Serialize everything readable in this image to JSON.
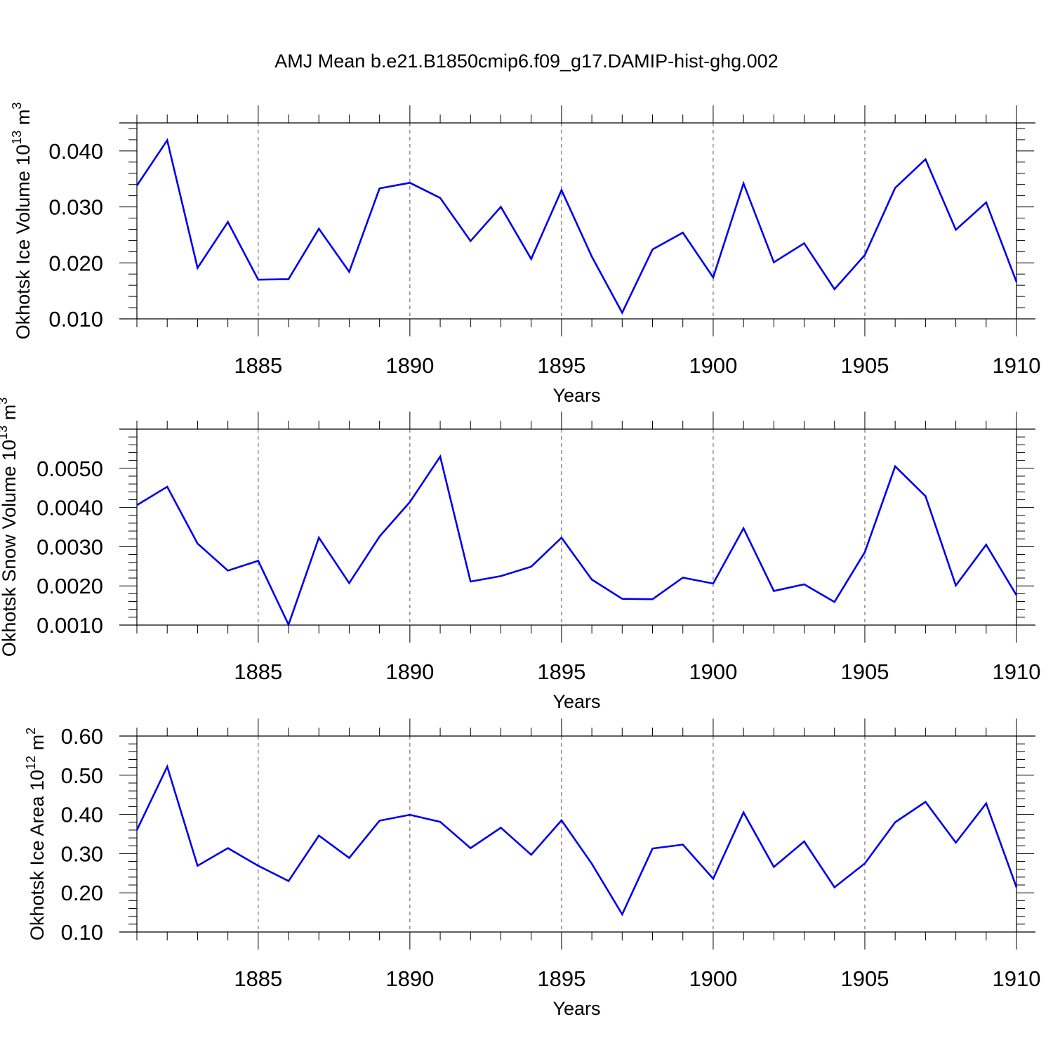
{
  "title": "AMJ Mean b.e21.B1850cmip6.f09_g17.DAMIP-hist-ghg.002",
  "colors": {
    "line": "#0000ee",
    "axis": "#000000",
    "grid": "#555555"
  },
  "chart_data": [
    {
      "type": "line",
      "ylabel_main": "Okhotsk Ice Volume 10",
      "ylabel_exp": "13",
      "ylabel_unit": " m",
      "ylabel_unit_exp": "3",
      "xlabel": "Years",
      "xlim": [
        1881,
        1910
      ],
      "ylim": [
        0.01,
        0.045
      ],
      "yticks": [
        0.01,
        0.02,
        0.03,
        0.04
      ],
      "ytick_labels": [
        "0.010",
        "0.020",
        "0.030",
        "0.040"
      ],
      "xticks": [
        1885,
        1890,
        1895,
        1900,
        1905,
        1910
      ],
      "xtick_labels": [
        "1885",
        "1890",
        "1895",
        "1900",
        "1905",
        "1910"
      ],
      "grid": "vertical dashed at major x ticks",
      "series": [
        {
          "x": [
            1881,
            1882,
            1883,
            1884,
            1885,
            1886,
            1887,
            1888,
            1889,
            1890,
            1891,
            1892,
            1893,
            1894,
            1895,
            1896,
            1897,
            1898,
            1899,
            1900,
            1901,
            1902,
            1903,
            1904,
            1905,
            1906,
            1907,
            1908,
            1909,
            1910
          ],
          "values": [
            0.0338,
            0.0419,
            0.0191,
            0.0273,
            0.017,
            0.0171,
            0.0261,
            0.0184,
            0.0333,
            0.0343,
            0.0316,
            0.0239,
            0.03,
            0.0207,
            0.033,
            0.0211,
            0.0111,
            0.0224,
            0.0254,
            0.0174,
            0.0342,
            0.0201,
            0.0235,
            0.0153,
            0.0214,
            0.0334,
            0.0385,
            0.0259,
            0.0308,
            0.0166
          ]
        }
      ]
    },
    {
      "type": "line",
      "ylabel_main": "Okhotsk Snow Volume 10",
      "ylabel_exp": "13",
      "ylabel_unit": " m",
      "ylabel_unit_exp": "3",
      "xlabel": "Years",
      "xlim": [
        1881,
        1910
      ],
      "ylim": [
        0.001,
        0.006
      ],
      "yticks": [
        0.001,
        0.002,
        0.003,
        0.004,
        0.005
      ],
      "ytick_labels": [
        "0.0010",
        "0.0020",
        "0.0030",
        "0.0040",
        "0.0050"
      ],
      "xticks": [
        1885,
        1890,
        1895,
        1900,
        1905,
        1910
      ],
      "xtick_labels": [
        "1885",
        "1890",
        "1895",
        "1900",
        "1905",
        "1910"
      ],
      "grid": "vertical dashed at major x ticks",
      "series": [
        {
          "x": [
            1881,
            1882,
            1883,
            1884,
            1885,
            1886,
            1887,
            1888,
            1889,
            1890,
            1891,
            1892,
            1893,
            1894,
            1895,
            1896,
            1897,
            1898,
            1899,
            1900,
            1901,
            1902,
            1903,
            1904,
            1905,
            1906,
            1907,
            1908,
            1909,
            1910
          ],
          "values": [
            0.00406,
            0.00453,
            0.00308,
            0.00239,
            0.00264,
            0.00101,
            0.00323,
            0.00207,
            0.00326,
            0.00414,
            0.0053,
            0.00211,
            0.00225,
            0.00249,
            0.00323,
            0.00216,
            0.00167,
            0.00166,
            0.00221,
            0.00206,
            0.00347,
            0.00187,
            0.00204,
            0.00159,
            0.00286,
            0.00505,
            0.00429,
            0.00201,
            0.00305,
            0.00176
          ]
        }
      ]
    },
    {
      "type": "line",
      "ylabel_main": "Okhotsk Ice Area 10",
      "ylabel_exp": "12",
      "ylabel_unit": " m",
      "ylabel_unit_exp": "2",
      "xlabel": "Years",
      "xlim": [
        1881,
        1910
      ],
      "ylim": [
        0.1,
        0.6
      ],
      "yticks": [
        0.1,
        0.2,
        0.3,
        0.4,
        0.5,
        0.6
      ],
      "ytick_labels": [
        "0.10",
        "0.20",
        "0.30",
        "0.40",
        "0.50",
        "0.60"
      ],
      "xticks": [
        1885,
        1890,
        1895,
        1900,
        1905,
        1910
      ],
      "xtick_labels": [
        "1885",
        "1890",
        "1895",
        "1900",
        "1905",
        "1910"
      ],
      "grid": "vertical dashed at major x ticks",
      "series": [
        {
          "x": [
            1881,
            1882,
            1883,
            1884,
            1885,
            1886,
            1887,
            1888,
            1889,
            1890,
            1891,
            1892,
            1893,
            1894,
            1895,
            1896,
            1897,
            1898,
            1899,
            1900,
            1901,
            1902,
            1903,
            1904,
            1905,
            1906,
            1907,
            1908,
            1909,
            1910
          ],
          "values": [
            0.36,
            0.522,
            0.269,
            0.314,
            0.269,
            0.23,
            0.346,
            0.289,
            0.384,
            0.399,
            0.381,
            0.314,
            0.366,
            0.297,
            0.385,
            0.274,
            0.145,
            0.313,
            0.323,
            0.236,
            0.405,
            0.266,
            0.331,
            0.214,
            0.275,
            0.38,
            0.432,
            0.328,
            0.428,
            0.214
          ]
        }
      ]
    }
  ]
}
